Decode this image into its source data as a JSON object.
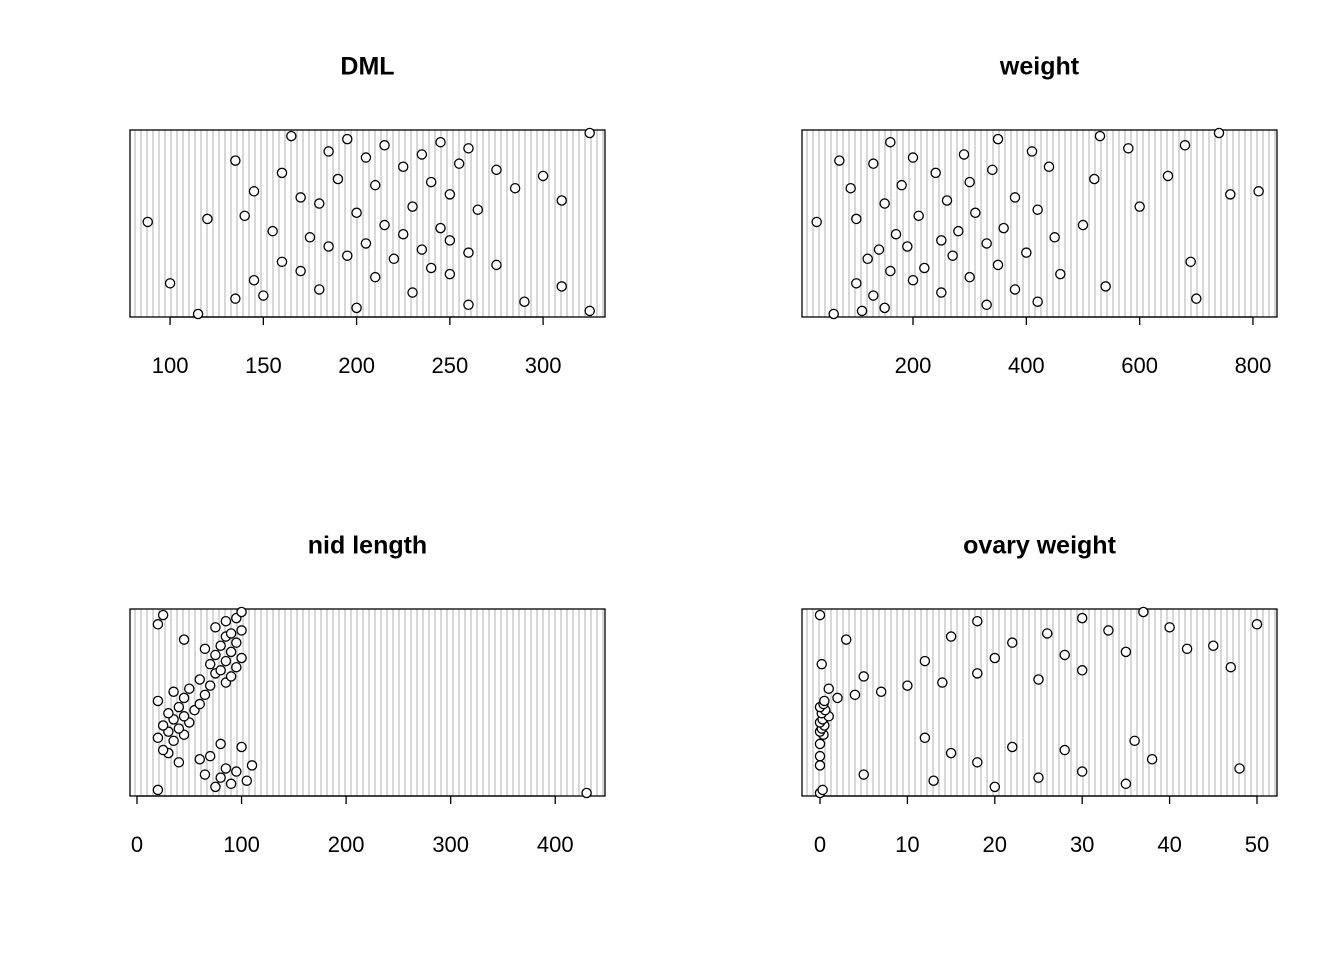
{
  "chart_data": [
    {
      "type": "dot",
      "title": "DML",
      "values": [
        115,
        325,
        200,
        260,
        290,
        135,
        150,
        230,
        180,
        310,
        100,
        145,
        210,
        250,
        170,
        240,
        275,
        160,
        220,
        195,
        260,
        235,
        185,
        205,
        250,
        175,
        225,
        155,
        245,
        215,
        88,
        120,
        140,
        200,
        265,
        230,
        180,
        310,
        170,
        250,
        145,
        285,
        210,
        240,
        190,
        300,
        160,
        275,
        225,
        255,
        135,
        205,
        235,
        185,
        260,
        215,
        245,
        195,
        165,
        325
      ],
      "xlim": [
        78.5,
        333.2
      ],
      "xticks": [
        100,
        150,
        200,
        250,
        300
      ]
    },
    {
      "type": "dot",
      "title": "weight",
      "values": [
        60,
        110,
        150,
        330,
        420,
        700,
        130,
        250,
        380,
        540,
        100,
        200,
        300,
        460,
        160,
        220,
        350,
        690,
        120,
        270,
        400,
        140,
        190,
        330,
        250,
        450,
        170,
        280,
        360,
        500,
        30,
        100,
        210,
        310,
        420,
        600,
        150,
        260,
        380,
        760,
        810,
        90,
        180,
        300,
        520,
        650,
        240,
        340,
        440,
        130,
        70,
        200,
        290,
        410,
        580,
        680,
        160,
        350,
        530,
        740
      ],
      "xlim": [
        4.1,
        842.4
      ],
      "xticks": [
        200,
        400,
        600,
        800
      ]
    },
    {
      "type": "dot",
      "title": "nid length",
      "values": [
        430,
        20,
        75,
        90,
        105,
        80,
        65,
        95,
        85,
        110,
        40,
        60,
        70,
        30,
        25,
        100,
        80,
        35,
        20,
        45,
        30,
        40,
        25,
        50,
        35,
        45,
        30,
        55,
        40,
        60,
        20,
        45,
        65,
        35,
        50,
        70,
        85,
        60,
        90,
        75,
        80,
        95,
        70,
        85,
        100,
        75,
        90,
        65,
        80,
        95,
        45,
        85,
        90,
        100,
        75,
        20,
        85,
        95,
        25,
        100
      ],
      "xlim": [
        -6.7,
        447.6
      ],
      "xticks": [
        0,
        100,
        200,
        300,
        400
      ]
    },
    {
      "type": "dot",
      "title": "ovary weight",
      "values": [
        0,
        0.3,
        20,
        35,
        13,
        25,
        5,
        30,
        48,
        0,
        18,
        38,
        0,
        15,
        28,
        22,
        0,
        36,
        12,
        0.4,
        0,
        0.2,
        0.5,
        0,
        0.3,
        1,
        0.2,
        0.6,
        0,
        0.4,
        0.5,
        2,
        4,
        7,
        1,
        10,
        14,
        25,
        5,
        18,
        30,
        47,
        0.2,
        12,
        20,
        28,
        35,
        42,
        45,
        22,
        3,
        15,
        26,
        33,
        40,
        50,
        18,
        30,
        0,
        37
      ],
      "xlim": [
        -2.06,
        52.29
      ],
      "xticks": [
        0,
        10,
        20,
        30,
        40,
        50
      ]
    }
  ]
}
